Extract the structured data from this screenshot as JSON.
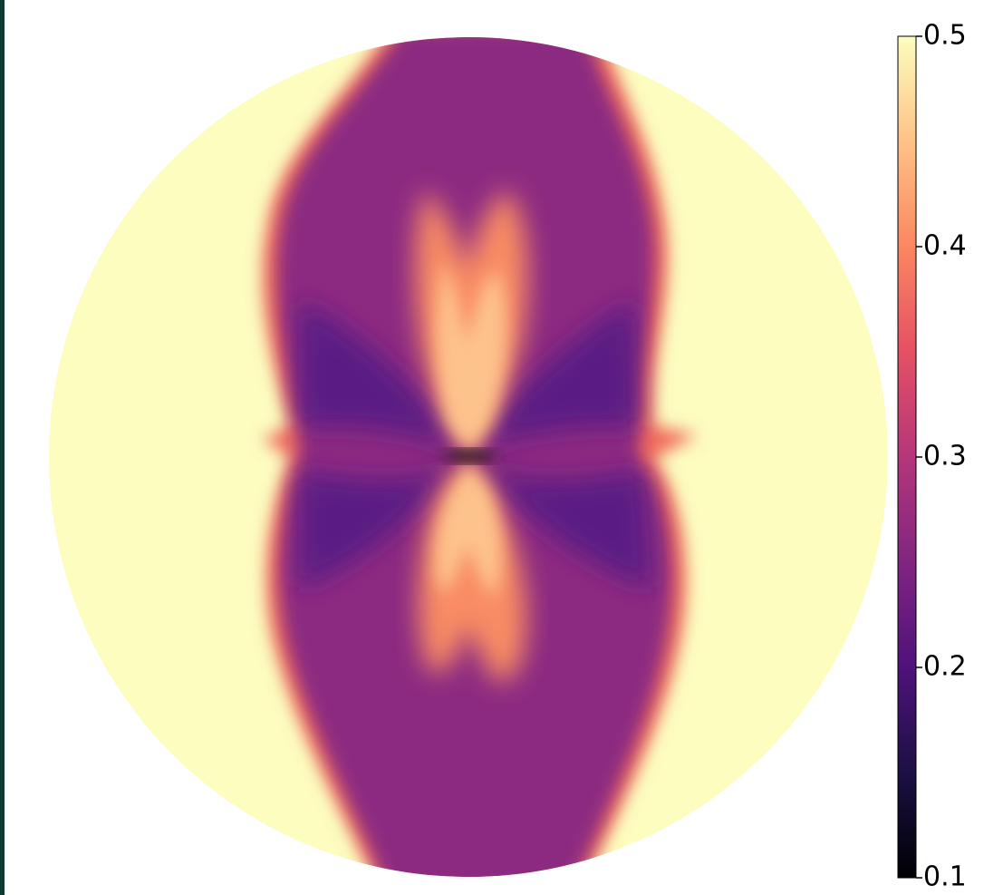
{
  "chart_data": {
    "type": "heatmap",
    "colormap": "magma",
    "clim": [
      0.1,
      0.5
    ],
    "cticks": [
      0.1,
      0.2,
      0.3,
      0.4,
      0.5
    ]
  }
}
